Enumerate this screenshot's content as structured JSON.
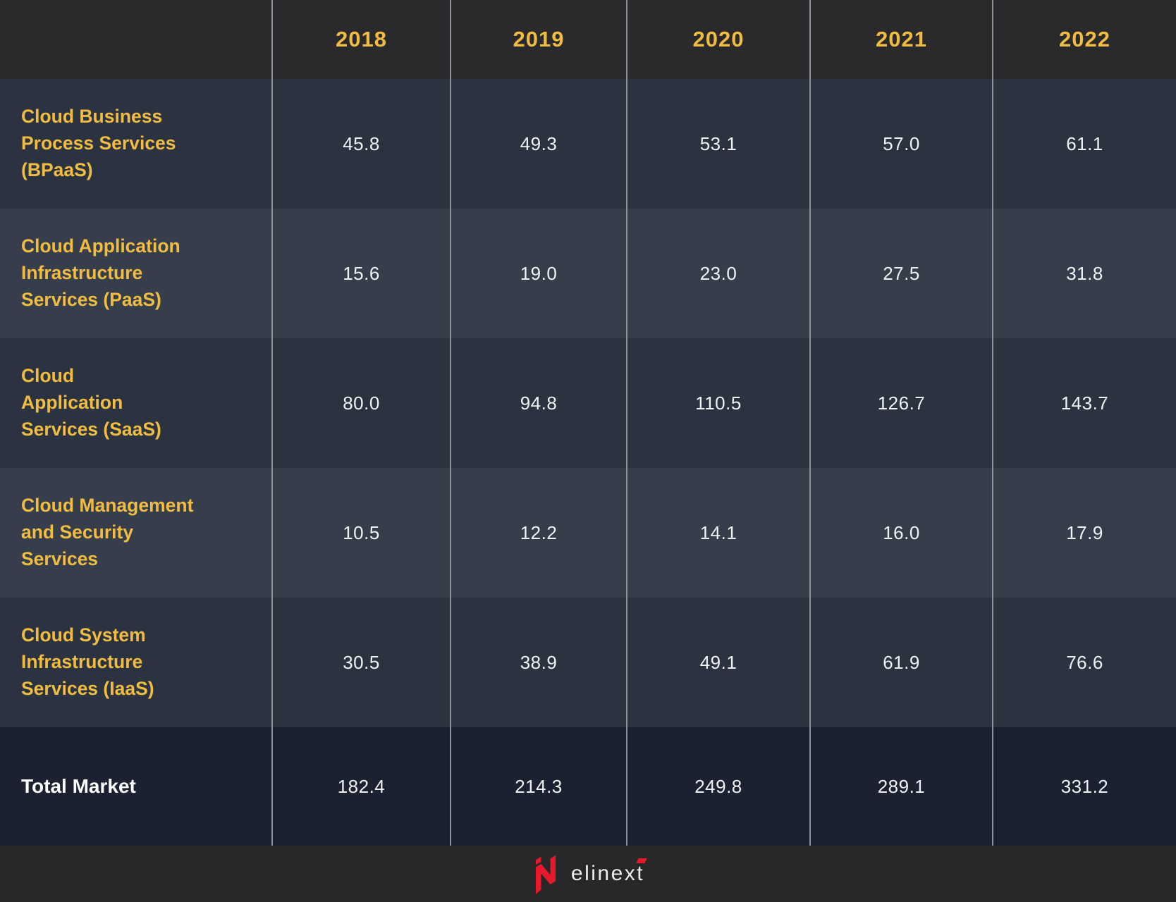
{
  "colors": {
    "header_bg": "#2a2a2c",
    "row_odd_bg": "#2c3340",
    "row_even_bg": "#373e4b",
    "total_row_bg": "#1b2130",
    "footer_bg": "#282829",
    "accent_yellow": "#f0bc41",
    "value_text": "#f1f2f4",
    "grid_line": "#8e9196",
    "brand_red": "#e8192c"
  },
  "table": {
    "columns": [
      "2018",
      "2019",
      "2020",
      "2021",
      "2022"
    ],
    "rows": [
      {
        "label": "Cloud Business Process Services (BPaaS)",
        "label_lines": [
          "Cloud Business",
          "Process Services",
          "(BPaaS)"
        ],
        "values": [
          "45.8",
          "49.3",
          "53.1",
          "57.0",
          "61.1"
        ]
      },
      {
        "label": "Cloud Application Infrastructure Services (PaaS)",
        "label_lines": [
          "Cloud Application",
          "Infrastructure",
          "Services (PaaS)"
        ],
        "values": [
          "15.6",
          "19.0",
          "23.0",
          "27.5",
          "31.8"
        ]
      },
      {
        "label": "Cloud Application Services (SaaS)",
        "label_lines": [
          "Cloud",
          "Application",
          "Services (SaaS)"
        ],
        "values": [
          "80.0",
          "94.8",
          "110.5",
          "126.7",
          "143.7"
        ]
      },
      {
        "label": "Cloud Management and Security Services",
        "label_lines": [
          "Cloud Management",
          "and Security",
          "Services"
        ],
        "values": [
          "10.5",
          "12.2",
          "14.1",
          "16.0",
          "17.9"
        ]
      },
      {
        "label": "Cloud System Infrastructure Services (IaaS)",
        "label_lines": [
          "Cloud System",
          "Infrastructure",
          "Services (IaaS)"
        ],
        "values": [
          "30.5",
          "38.9",
          "49.1",
          "61.9",
          "76.6"
        ]
      }
    ],
    "total": {
      "label": "Total Market",
      "values": [
        "182.4",
        "214.3",
        "249.8",
        "289.1",
        "331.2"
      ]
    }
  },
  "footer": {
    "brand": "elinext"
  },
  "chart_data": {
    "type": "table",
    "title": "",
    "categories": [
      "2018",
      "2019",
      "2020",
      "2021",
      "2022"
    ],
    "series": [
      {
        "name": "Cloud Business Process Services (BPaaS)",
        "values": [
          45.8,
          49.3,
          53.1,
          57.0,
          61.1
        ]
      },
      {
        "name": "Cloud Application Infrastructure Services (PaaS)",
        "values": [
          15.6,
          19.0,
          23.0,
          27.5,
          31.8
        ]
      },
      {
        "name": "Cloud Application Services (SaaS)",
        "values": [
          80.0,
          94.8,
          110.5,
          126.7,
          143.7
        ]
      },
      {
        "name": "Cloud Management and Security Services",
        "values": [
          10.5,
          12.2,
          14.1,
          16.0,
          17.9
        ]
      },
      {
        "name": "Cloud System Infrastructure Services (IaaS)",
        "values": [
          30.5,
          38.9,
          49.1,
          61.9,
          76.6
        ]
      },
      {
        "name": "Total Market",
        "values": [
          182.4,
          214.3,
          249.8,
          289.1,
          331.2
        ]
      }
    ],
    "legend_position": "none",
    "grid": "vertical-lines-only"
  }
}
